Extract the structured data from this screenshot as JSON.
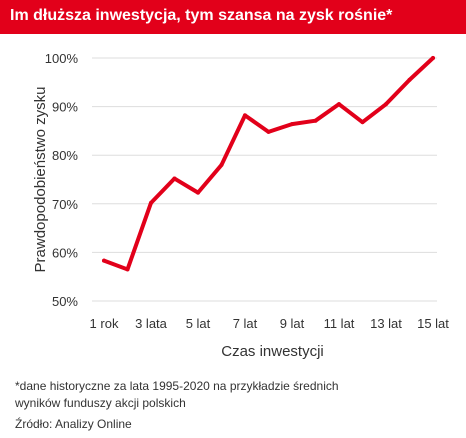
{
  "header": {
    "title": "Im dłuższa inwestycja, tym szansa na zysk rośnie*"
  },
  "chart_data": {
    "type": "line",
    "title": "Im dłuższa inwestycja, tym szansa na zysk rośnie*",
    "xlabel": "Czas inwestycji",
    "ylabel": "Prawdopodobieństwo zysku",
    "x": [
      1,
      2,
      3,
      4,
      5,
      6,
      7,
      8,
      9,
      10,
      11,
      12,
      13,
      14,
      15
    ],
    "x_ticks": [
      {
        "value": 1,
        "label": "1 rok"
      },
      {
        "value": 3,
        "label": "3 lata"
      },
      {
        "value": 5,
        "label": "5 lat"
      },
      {
        "value": 7,
        "label": "7 lat"
      },
      {
        "value": 9,
        "label": "9 lat"
      },
      {
        "value": 11,
        "label": "11 lat"
      },
      {
        "value": 13,
        "label": "13 lat"
      },
      {
        "value": 15,
        "label": "15 lat"
      }
    ],
    "y_ticks": [
      {
        "value": 50,
        "label": "50%"
      },
      {
        "value": 60,
        "label": "60%"
      },
      {
        "value": 70,
        "label": "70%"
      },
      {
        "value": 80,
        "label": "80%"
      },
      {
        "value": 90,
        "label": "90%"
      },
      {
        "value": 100,
        "label": "100%"
      }
    ],
    "ylim": [
      50,
      100
    ],
    "xlim": [
      1,
      15
    ],
    "grid": true,
    "series": [
      {
        "color": "#e2001a",
        "values": [
          58.3,
          56.5,
          70.2,
          75.2,
          72.3,
          78.0,
          88.2,
          84.8,
          86.4,
          87.1,
          90.5,
          86.8,
          90.5,
          95.5,
          100.0
        ]
      }
    ]
  },
  "colors": {
    "accent": "#e2001a",
    "grid": "#dddddd",
    "text": "#333333"
  },
  "footnote": {
    "line1": "*dane historyczne za lata 1995-2020 na przykładzie średnich",
    "line2": "wyników funduszy akcji polskich"
  },
  "source": "Źródło: Analizy Online"
}
